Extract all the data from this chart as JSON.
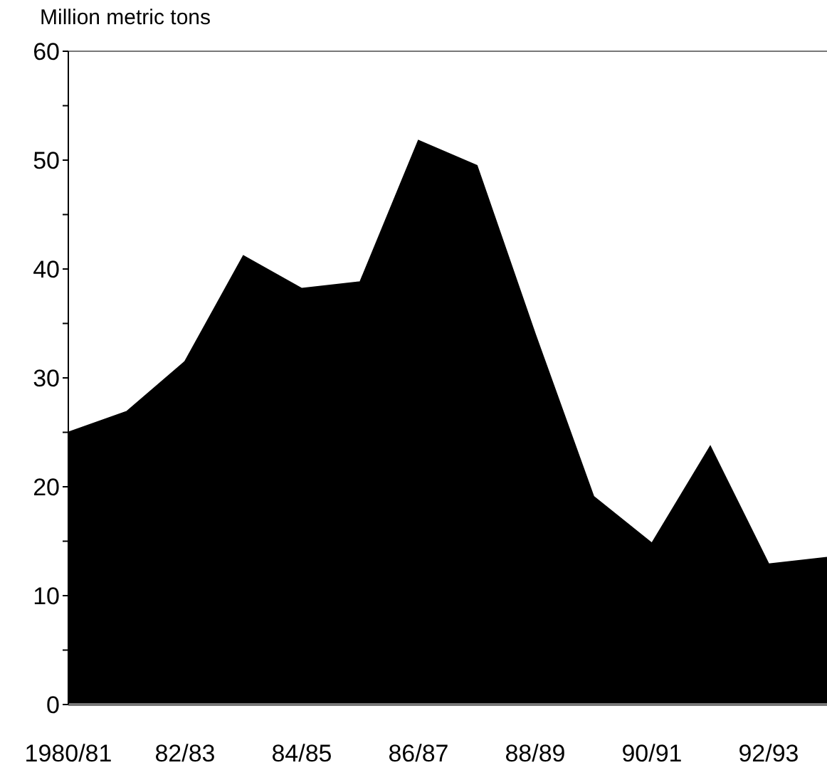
{
  "chart_data": {
    "type": "area",
    "ylabel": "Million metric tons",
    "categories": [
      "1980/81",
      null,
      "82/83",
      null,
      "84/85",
      null,
      "86/87",
      null,
      "88/89",
      null,
      "90/91",
      null,
      "92/93",
      null
    ],
    "series": [
      {
        "color": "#000000",
        "values": [
          25.0,
          26.9,
          31.5,
          41.2,
          38.2,
          38.8,
          51.8,
          49.5,
          34.0,
          19.1,
          14.8,
          23.7,
          12.9,
          13.5
        ]
      }
    ],
    "ylim": [
      0,
      60
    ],
    "yticks": [
      0,
      {
        "value": 5,
        "label": null
      },
      10,
      {
        "value": 15,
        "label": null
      },
      20,
      {
        "value": 25,
        "label": null
      },
      30,
      {
        "value": 35,
        "label": null
      },
      40,
      {
        "value": 45,
        "label": null
      },
      50,
      {
        "value": 55,
        "label": null
      },
      60
    ],
    "grid": false
  }
}
